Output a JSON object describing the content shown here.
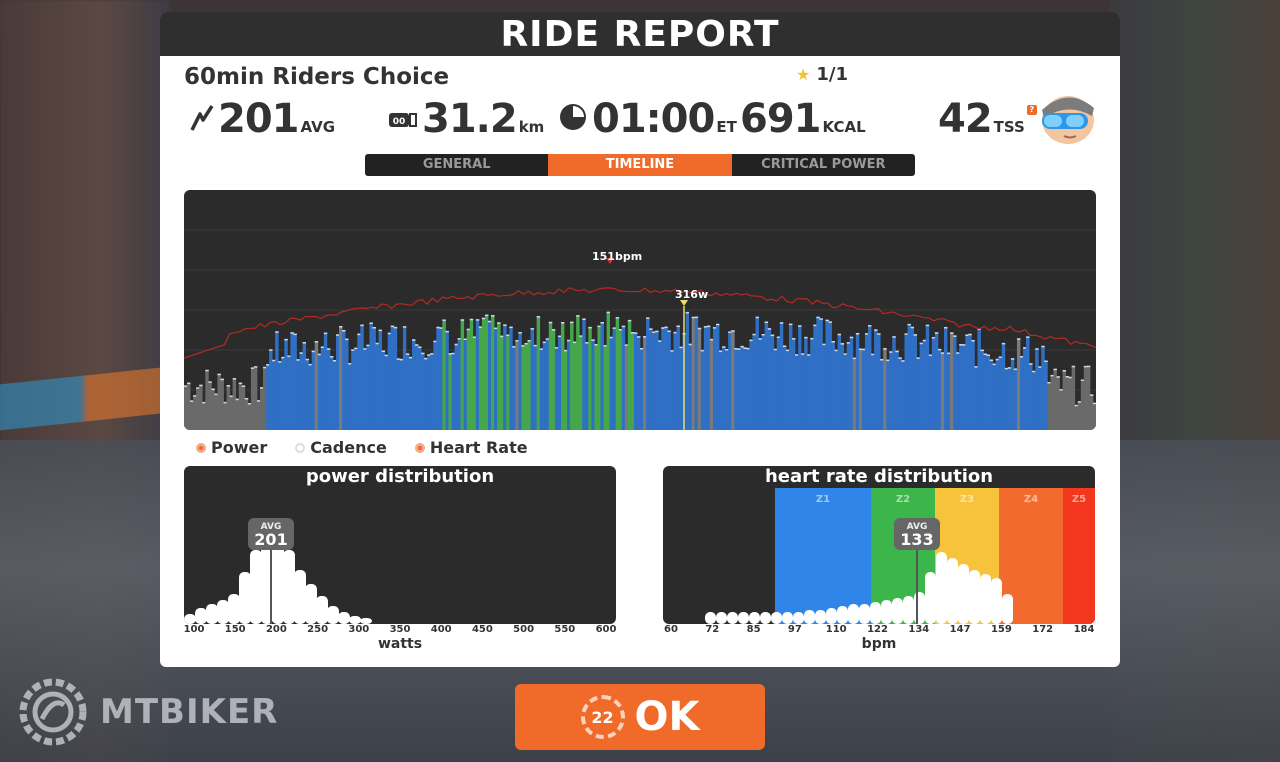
{
  "header": {
    "title": "RIDE REPORT"
  },
  "ride": {
    "name": "60min Riders Choice",
    "rating": "1/1"
  },
  "stats": {
    "power_value": "201",
    "power_unit": "AVG",
    "distance_value": "31.2",
    "distance_unit": "km",
    "time_value": "01:00",
    "time_unit": "ET",
    "calories_value": "691",
    "calories_unit": "KCAL",
    "tss_value": "42",
    "tss_unit": "TSS",
    "tss_help": "?"
  },
  "tabs": [
    {
      "label": "GENERAL",
      "active": false
    },
    {
      "label": "TIMELINE",
      "active": true
    },
    {
      "label": "CRITICAL POWER",
      "active": false
    }
  ],
  "timeline": {
    "peak_hr_label": "151bpm",
    "peak_power_label": "316w"
  },
  "legend": [
    {
      "label": "Power",
      "on": true
    },
    {
      "label": "Cadence",
      "on": false
    },
    {
      "label": "Heart Rate",
      "on": true
    }
  ],
  "power_dist": {
    "title": "power distribution",
    "avg_label": "AVG",
    "avg_value": "201",
    "axis_label": "watts",
    "ticks": [
      "100",
      "150",
      "200",
      "250",
      "300",
      "350",
      "400",
      "450",
      "500",
      "550",
      "600"
    ]
  },
  "hr_dist": {
    "title": "heart rate distribution",
    "avg_label": "AVG",
    "avg_value": "133",
    "axis_label": "bpm",
    "ticks": [
      "60",
      "72",
      "85",
      "97",
      "110",
      "122",
      "134",
      "147",
      "159",
      "172",
      "184"
    ],
    "zones": [
      {
        "label": "Z1",
        "color": "#2f86e8"
      },
      {
        "label": "Z2",
        "color": "#3cb54a"
      },
      {
        "label": "Z3",
        "color": "#f7c33a"
      },
      {
        "label": "Z4",
        "color": "#f26a2e"
      },
      {
        "label": "Z5",
        "color": "#f2371e"
      }
    ]
  },
  "ok_button": {
    "label": "OK",
    "countdown": "22"
  },
  "brand": {
    "text": "MTBIKER"
  },
  "colors": {
    "accent": "#f06b2a",
    "power_blue": "#2f6fc4",
    "power_green": "#46a64a",
    "hr_line": "#b52a22"
  }
}
